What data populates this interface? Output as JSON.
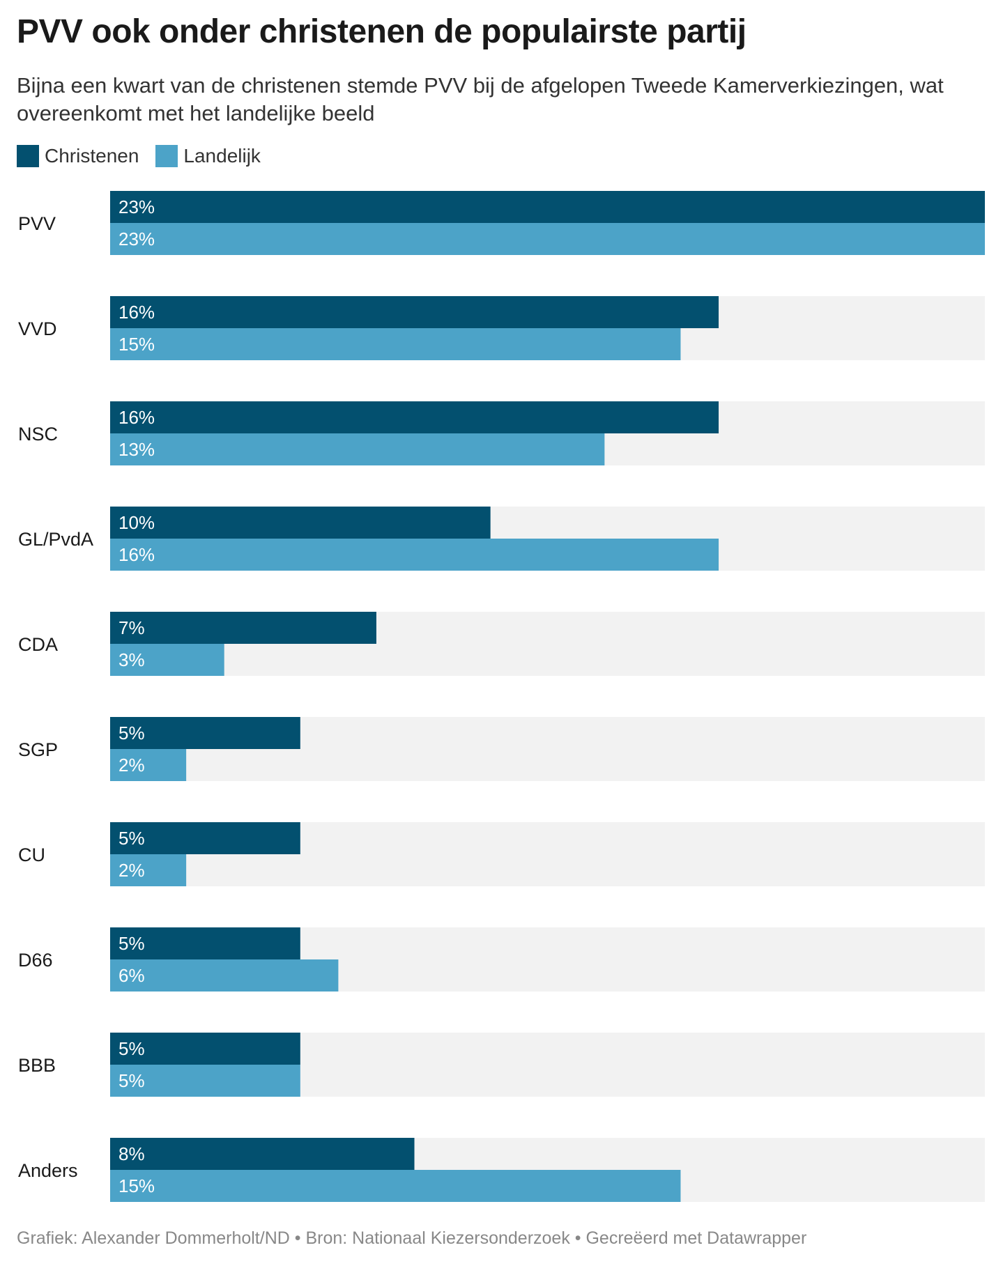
{
  "title": "PVV ook onder christenen de populairste partij",
  "subtitle": "Bijna een kwart van de christenen stemde PVV bij de afgelopen Tweede Kamerverkiezingen, wat overeenkomt met het landelijke beeld",
  "footer": "Grafiek: Alexander Dommerholt/ND • Bron: Nationaal Kiezersonderzoek • Gecreëerd met Datawrapper",
  "colors": {
    "christenen": "#03506f",
    "landelijk": "#4ca3c8",
    "track": "#f2f2f2",
    "label_text": "#ffffff"
  },
  "chart_data": {
    "type": "bar",
    "orientation": "horizontal",
    "grouped": true,
    "value_suffix": "%",
    "xlim": [
      0,
      23
    ],
    "grid": false,
    "legend_position": "top-left",
    "categories": [
      "PVV",
      "VVD",
      "NSC",
      "GL/PvdA",
      "CDA",
      "SGP",
      "CU",
      "D66",
      "BBB",
      "Anders"
    ],
    "series": [
      {
        "name": "Christenen",
        "values": [
          23,
          16,
          16,
          10,
          7,
          5,
          5,
          5,
          5,
          8
        ]
      },
      {
        "name": "Landelijk",
        "values": [
          23,
          15,
          13,
          16,
          3,
          2,
          2,
          6,
          5,
          15
        ]
      }
    ]
  }
}
